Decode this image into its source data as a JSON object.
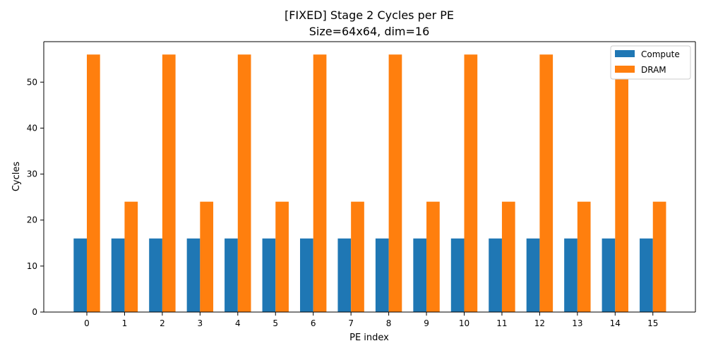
{
  "chart_data": {
    "type": "bar",
    "title": "[FIXED] Stage 2 Cycles per PE",
    "subtitle": "Size=64x64, dim=16",
    "xlabel": "PE index",
    "ylabel": "Cycles",
    "categories": [
      "0",
      "1",
      "2",
      "3",
      "4",
      "5",
      "6",
      "7",
      "8",
      "9",
      "10",
      "11",
      "12",
      "13",
      "14",
      "15"
    ],
    "series": [
      {
        "name": "Compute",
        "color": "#1f77b4",
        "values": [
          16,
          16,
          16,
          16,
          16,
          16,
          16,
          16,
          16,
          16,
          16,
          16,
          16,
          16,
          16,
          16
        ]
      },
      {
        "name": "DRAM",
        "color": "#ff7f0e",
        "values": [
          56,
          24,
          56,
          24,
          56,
          24,
          56,
          24,
          56,
          24,
          56,
          24,
          56,
          24,
          56,
          24
        ]
      }
    ],
    "ylim": [
      0,
      58.8
    ],
    "yticks": [
      0,
      10,
      20,
      30,
      40,
      50
    ],
    "grid": false,
    "legend_position": "top-right"
  }
}
